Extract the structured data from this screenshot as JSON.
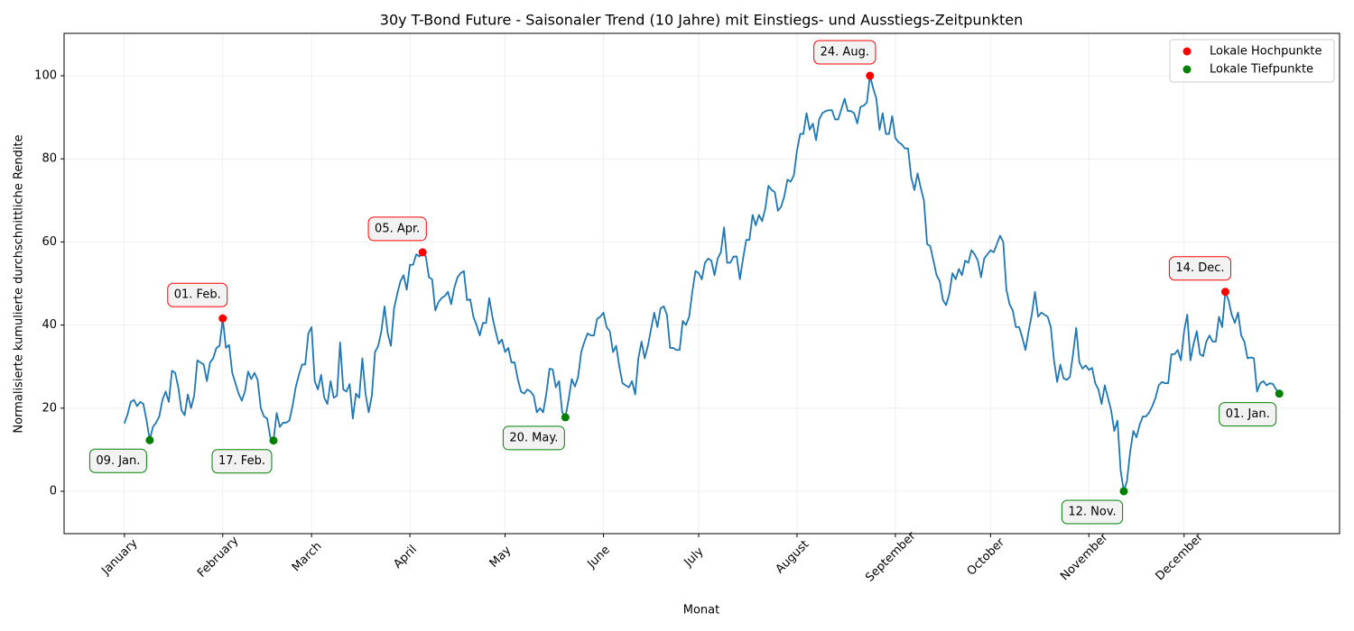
{
  "chart_data": {
    "type": "line",
    "title": "30y T-Bond Future - Saisonaler Trend (10 Jahre) mit Einstiegs- und Ausstiegs-Zeitpunkten",
    "xlabel": "Monat",
    "ylabel": "Normalisierte kumulierte durchschnittliche Rendite",
    "xlim": [
      -19,
      383
    ],
    "ylim": [
      -10.2,
      110.2
    ],
    "xticks": [
      {
        "value": 0,
        "label": "January"
      },
      {
        "value": 31,
        "label": "February"
      },
      {
        "value": 59,
        "label": "March"
      },
      {
        "value": 90,
        "label": "April"
      },
      {
        "value": 120,
        "label": "May"
      },
      {
        "value": 151,
        "label": "June"
      },
      {
        "value": 181,
        "label": "July"
      },
      {
        "value": 212,
        "label": "August"
      },
      {
        "value": 243,
        "label": "September"
      },
      {
        "value": 273,
        "label": "October"
      },
      {
        "value": 304,
        "label": "November"
      },
      {
        "value": 334,
        "label": "December"
      }
    ],
    "yticks": [
      0,
      20,
      40,
      60,
      80,
      100
    ],
    "grid": true,
    "legend": "upper right",
    "line": {
      "color": "#1f77b4",
      "x": [
        0,
        1,
        2,
        3,
        4,
        5,
        6,
        7,
        8,
        9,
        10,
        11,
        12,
        13,
        14,
        15,
        16,
        17,
        18,
        19,
        20,
        21,
        22,
        23,
        24,
        25,
        26,
        27,
        28,
        29,
        30,
        31,
        32,
        33,
        34,
        35,
        36,
        37,
        38,
        39,
        40,
        41,
        42,
        43,
        44,
        45,
        46,
        47,
        48,
        49,
        50,
        51,
        52,
        53,
        54,
        55,
        56,
        57,
        58,
        59,
        60,
        61,
        62,
        63,
        64,
        65,
        66,
        67,
        68,
        69,
        70,
        71,
        72,
        73,
        74,
        75,
        76,
        77,
        78,
        79,
        80,
        81,
        82,
        83,
        84,
        85,
        86,
        87,
        88,
        89,
        90,
        91,
        92,
        93,
        94,
        95,
        96,
        97,
        98,
        99,
        100,
        101,
        102,
        103,
        104,
        105,
        106,
        107,
        108,
        109,
        110,
        111,
        112,
        113,
        114,
        115,
        116,
        117,
        118,
        119,
        120,
        121,
        122,
        123,
        124,
        125,
        126,
        127,
        128,
        129,
        130,
        131,
        132,
        133,
        134,
        135,
        136,
        137,
        138,
        139,
        140,
        141,
        142,
        143,
        144,
        145,
        146,
        147,
        148,
        149,
        150,
        151,
        152,
        153,
        154,
        155,
        156,
        157,
        158,
        159,
        160,
        161,
        162,
        163,
        164,
        165,
        166,
        167,
        168,
        169,
        170,
        171,
        172,
        173,
        174,
        175,
        176,
        177,
        178,
        179,
        180,
        181,
        182,
        183,
        184,
        185,
        186,
        187,
        188,
        189,
        190,
        191,
        192,
        193,
        194,
        195,
        196,
        197,
        198,
        199,
        200,
        201,
        202,
        203,
        204,
        205,
        206,
        207,
        208,
        209,
        210,
        211,
        212,
        213,
        214,
        215,
        216,
        217,
        218,
        219,
        220,
        221,
        222,
        223,
        224,
        225,
        226,
        227,
        228,
        229,
        230,
        231,
        232,
        233,
        234,
        235,
        236,
        237,
        238,
        239,
        240,
        241,
        242,
        243,
        244,
        245,
        246,
        247,
        248,
        249,
        250,
        251,
        252,
        253,
        254,
        255,
        256,
        257,
        258,
        259,
        260,
        261,
        262,
        263,
        264,
        265,
        266,
        267,
        268,
        269,
        270,
        271,
        272,
        273,
        274,
        275,
        276,
        277,
        278,
        279,
        280,
        281,
        282,
        283,
        284,
        285,
        286,
        287,
        288,
        289,
        290,
        291,
        292,
        293,
        294,
        295,
        296,
        297,
        298,
        299,
        300,
        301,
        302,
        303,
        304,
        305,
        306,
        307,
        308,
        309,
        310,
        311,
        312,
        313,
        314,
        315,
        316,
        317,
        318,
        319,
        320,
        321,
        322,
        323,
        324,
        325,
        326,
        327,
        328,
        329,
        330,
        331,
        332,
        333,
        334,
        335,
        336,
        337,
        338,
        339,
        340,
        341,
        342,
        343,
        344,
        345,
        346,
        347,
        348,
        349,
        350,
        351,
        352,
        353,
        354,
        355,
        356,
        357,
        358,
        359,
        360,
        361,
        362,
        363,
        364
      ],
      "values": [
        16.3,
        18.5,
        21.5,
        22,
        20.5,
        21.5,
        21,
        17,
        12.3,
        15.5,
        16.5,
        18,
        22,
        24,
        21.5,
        29,
        28.5,
        25,
        19.5,
        18.3,
        23.3,
        20,
        23,
        31.5,
        31,
        30.5,
        26.5,
        31,
        32,
        34.5,
        35,
        41.6,
        34.5,
        35.2,
        28.5,
        26,
        23.5,
        21.8,
        24,
        28.8,
        27,
        28.5,
        26.8,
        20,
        18,
        17.5,
        13,
        12.2,
        18.8,
        15.5,
        16.5,
        16.5,
        17,
        20.5,
        25,
        28,
        30.5,
        30.5,
        38,
        39.5,
        26.5,
        24.5,
        28,
        22.5,
        21,
        26.5,
        22.5,
        23,
        35.8,
        24.5,
        24,
        25.8,
        17.5,
        23.5,
        22.5,
        32,
        23.5,
        19,
        23,
        33.5,
        35,
        38.5,
        44.5,
        38,
        35,
        44,
        47.5,
        50.5,
        52,
        48.5,
        54.5,
        54.5,
        57,
        56.5,
        57.5,
        56.5,
        51.5,
        51,
        43.5,
        45.5,
        46.5,
        47,
        48,
        45,
        49,
        51.5,
        52.5,
        53,
        46,
        46.2,
        42,
        40,
        37.5,
        40.5,
        40.5,
        46.5,
        42,
        38.5,
        35.5,
        36.5,
        33.5,
        34.5,
        31,
        31,
        27,
        24,
        23.5,
        24.5,
        24,
        23,
        19,
        20,
        19,
        23.5,
        29.5,
        29.3,
        25,
        26.5,
        19,
        17.8,
        22,
        27,
        25.2,
        27.5,
        33.5,
        36,
        38,
        37.5,
        37.5,
        41.5,
        42,
        43,
        39.5,
        38.5,
        33.5,
        35,
        30,
        26,
        25.5,
        25,
        26.5,
        23.3,
        32,
        36,
        32,
        35,
        39,
        43,
        39.5,
        44,
        44.5,
        42.5,
        34.5,
        34.5,
        34,
        34,
        41,
        40,
        42,
        48,
        53,
        52.5,
        51,
        55,
        56,
        55.5,
        52,
        56,
        57.5,
        63.5,
        55,
        55,
        56.5,
        56.5,
        51,
        56,
        60.5,
        60.5,
        66.5,
        64,
        66.5,
        65,
        68,
        73.5,
        72.5,
        72,
        67.5,
        68.5,
        71,
        75,
        74.5,
        76,
        82,
        86,
        86,
        91,
        87,
        88.5,
        84.5,
        89.5,
        91,
        91.5,
        91.7,
        91.7,
        89.5,
        89.5,
        92,
        94.5,
        91.5,
        91.5,
        91,
        88.5,
        92.5,
        92.8,
        93.5,
        100,
        97,
        94.5,
        87,
        91,
        86,
        86,
        90.3,
        85,
        84,
        83.5,
        82.5,
        82.5,
        75.5,
        72.5,
        76.5,
        73,
        70,
        59.5,
        59,
        55.5,
        52,
        50.5,
        46,
        44.8,
        47.5,
        52.5,
        51,
        53.5,
        52,
        55.5,
        55,
        58,
        57,
        55.5,
        51.5,
        56,
        57,
        58,
        57.5,
        59.5,
        61.5,
        60,
        48.5,
        45,
        43.5,
        39.5,
        39.5,
        37,
        34,
        38.5,
        42.5,
        48,
        42,
        43,
        42.5,
        42,
        39.5,
        31.5,
        26.3,
        30.5,
        27.2,
        26.8,
        27.5,
        33,
        39.3,
        31,
        29.5,
        30.3,
        29.2,
        29.7,
        26,
        24.5,
        21,
        25.5,
        22.5,
        19.5,
        14.5,
        17,
        5,
        0,
        2.5,
        9.5,
        14.5,
        13,
        16,
        18,
        18,
        19,
        20.5,
        22.5,
        25.5,
        26.3,
        26,
        26,
        33,
        33,
        34,
        31.5,
        38.5,
        42.5,
        31.5,
        35.5,
        38.5,
        33,
        32.5,
        36,
        37.5,
        36,
        36,
        42,
        39.5,
        48,
        46,
        42.5,
        40.5,
        43,
        37.5,
        36,
        32,
        32.2,
        32,
        24,
        26,
        26.5,
        25.5,
        26,
        25.8,
        24.5,
        23.5
      ]
    },
    "series": [
      {
        "name": "Lokale Hochpunkte",
        "color": "red",
        "label_position": "above",
        "x": [
          31,
          94,
          235,
          347
        ],
        "values": [
          41.6,
          57.5,
          100,
          48
        ],
        "labels": [
          "01. Feb.",
          "05. Apr.",
          "24. Aug.",
          "14. Dec."
        ]
      },
      {
        "name": "Lokale Tiefpunkte",
        "color": "green",
        "label_position": "below",
        "x": [
          8,
          47,
          139,
          315,
          364
        ],
        "values": [
          12.3,
          12.2,
          17.8,
          0,
          23.5
        ],
        "labels": [
          "09. Jan.",
          "17. Feb.",
          "20. May.",
          "12. Nov.",
          "01. Jan."
        ]
      }
    ]
  }
}
